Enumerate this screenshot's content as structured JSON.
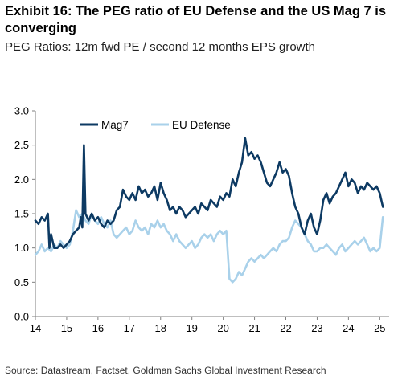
{
  "header": {
    "title": "Exhibit 16: The PEG ratio of EU Defense and the US Mag 7 is converging",
    "subtitle": "PEG Ratios: 12m fwd PE / second 12 months EPS growth"
  },
  "footer": {
    "source": "Source: Datastream, Factset, Goldman Sachs Global Investment Research"
  },
  "colors": {
    "mag7": "#0d3a63",
    "eu_defense": "#a9d1ea",
    "axis": "#7f7f7f"
  },
  "chart_data": {
    "type": "line",
    "title": "",
    "xlabel": "",
    "ylabel": "",
    "xlim": [
      2014,
      2025.3
    ],
    "ylim": [
      0.0,
      3.0
    ],
    "x_ticks": [
      "14",
      "15",
      "16",
      "17",
      "18",
      "19",
      "20",
      "21",
      "22",
      "23",
      "24",
      "25"
    ],
    "y_ticks": [
      "0.0",
      "0.5",
      "1.0",
      "1.5",
      "2.0",
      "2.5",
      "3.0"
    ],
    "grid": false,
    "legend": "top-center",
    "series": [
      {
        "name": "Mag7",
        "color": "#0d3a63",
        "x": [
          2014.0,
          2014.1,
          2014.2,
          2014.3,
          2014.4,
          2014.45,
          2014.5,
          2014.6,
          2014.7,
          2014.8,
          2014.9,
          2015.0,
          2015.1,
          2015.2,
          2015.3,
          2015.4,
          2015.45,
          2015.5,
          2015.55,
          2015.6,
          2015.7,
          2015.8,
          2015.9,
          2016.0,
          2016.1,
          2016.2,
          2016.3,
          2016.4,
          2016.5,
          2016.6,
          2016.7,
          2016.8,
          2016.9,
          2017.0,
          2017.1,
          2017.2,
          2017.3,
          2017.4,
          2017.5,
          2017.6,
          2017.7,
          2017.8,
          2017.9,
          2018.0,
          2018.1,
          2018.2,
          2018.3,
          2018.4,
          2018.5,
          2018.6,
          2018.7,
          2018.8,
          2018.9,
          2019.0,
          2019.1,
          2019.2,
          2019.3,
          2019.4,
          2019.5,
          2019.6,
          2019.7,
          2019.8,
          2019.9,
          2020.0,
          2020.1,
          2020.2,
          2020.3,
          2020.4,
          2020.5,
          2020.6,
          2020.7,
          2020.8,
          2020.9,
          2021.0,
          2021.1,
          2021.2,
          2021.3,
          2021.4,
          2021.5,
          2021.6,
          2021.7,
          2021.8,
          2021.9,
          2022.0,
          2022.1,
          2022.2,
          2022.3,
          2022.4,
          2022.5,
          2022.6,
          2022.7,
          2022.8,
          2022.9,
          2023.0,
          2023.1,
          2023.2,
          2023.3,
          2023.4,
          2023.5,
          2023.6,
          2023.7,
          2023.8,
          2023.9,
          2024.0,
          2024.1,
          2024.2,
          2024.3,
          2024.4,
          2024.5,
          2024.6,
          2024.7,
          2024.8,
          2024.9,
          2025.0,
          2025.1
        ],
        "values": [
          1.4,
          1.35,
          1.45,
          1.4,
          1.5,
          1.0,
          1.2,
          1.0,
          1.0,
          1.05,
          1.0,
          1.05,
          1.1,
          1.2,
          1.25,
          1.3,
          1.45,
          1.3,
          2.5,
          1.5,
          1.4,
          1.5,
          1.4,
          1.45,
          1.35,
          1.3,
          1.4,
          1.35,
          1.4,
          1.55,
          1.6,
          1.85,
          1.75,
          1.7,
          1.8,
          1.7,
          1.9,
          1.8,
          1.85,
          1.75,
          1.8,
          1.9,
          1.7,
          1.95,
          1.8,
          1.7,
          1.55,
          1.6,
          1.5,
          1.6,
          1.55,
          1.45,
          1.5,
          1.55,
          1.6,
          1.5,
          1.65,
          1.6,
          1.55,
          1.7,
          1.65,
          1.6,
          1.75,
          1.7,
          1.8,
          1.75,
          2.0,
          1.9,
          2.1,
          2.25,
          2.6,
          2.35,
          2.4,
          2.3,
          2.35,
          2.25,
          2.1,
          1.95,
          1.9,
          2.0,
          2.1,
          2.25,
          2.1,
          2.15,
          2.05,
          1.8,
          1.6,
          1.5,
          1.3,
          1.2,
          1.4,
          1.5,
          1.3,
          1.2,
          1.4,
          1.7,
          1.8,
          1.65,
          1.75,
          1.8,
          1.9,
          2.0,
          2.1,
          1.9,
          2.0,
          1.95,
          1.8,
          1.9,
          1.85,
          1.95,
          1.9,
          1.85,
          1.9,
          1.8,
          1.6
        ]
      },
      {
        "name": "EU Defense",
        "color": "#a9d1ea",
        "x": [
          2014.0,
          2014.1,
          2014.2,
          2014.3,
          2014.4,
          2014.5,
          2014.6,
          2014.7,
          2014.8,
          2014.9,
          2015.0,
          2015.1,
          2015.2,
          2015.3,
          2015.4,
          2015.5,
          2015.6,
          2015.7,
          2015.8,
          2015.9,
          2016.0,
          2016.1,
          2016.2,
          2016.3,
          2016.4,
          2016.5,
          2016.6,
          2016.7,
          2016.8,
          2016.9,
          2017.0,
          2017.1,
          2017.2,
          2017.3,
          2017.4,
          2017.5,
          2017.6,
          2017.7,
          2017.8,
          2017.9,
          2018.0,
          2018.1,
          2018.2,
          2018.3,
          2018.4,
          2018.5,
          2018.6,
          2018.7,
          2018.8,
          2018.9,
          2019.0,
          2019.1,
          2019.2,
          2019.3,
          2019.4,
          2019.5,
          2019.6,
          2019.7,
          2019.8,
          2019.9,
          2020.0,
          2020.1,
          2020.2,
          2020.3,
          2020.4,
          2020.5,
          2020.6,
          2020.7,
          2020.8,
          2020.9,
          2021.0,
          2021.1,
          2021.2,
          2021.3,
          2021.4,
          2021.5,
          2021.6,
          2021.7,
          2021.8,
          2021.9,
          2022.0,
          2022.1,
          2022.2,
          2022.3,
          2022.4,
          2022.5,
          2022.6,
          2022.7,
          2022.8,
          2022.9,
          2023.0,
          2023.1,
          2023.2,
          2023.3,
          2023.4,
          2023.5,
          2023.6,
          2023.7,
          2023.8,
          2023.9,
          2024.0,
          2024.1,
          2024.2,
          2024.3,
          2024.4,
          2024.5,
          2024.6,
          2024.7,
          2024.8,
          2024.9,
          2025.0,
          2025.1
        ],
        "values": [
          0.9,
          0.95,
          1.05,
          0.95,
          1.0,
          0.95,
          1.05,
          1.0,
          1.1,
          1.05,
          1.0,
          1.05,
          1.25,
          1.55,
          1.45,
          1.5,
          1.4,
          1.35,
          1.5,
          1.4,
          1.35,
          1.45,
          1.35,
          1.3,
          1.4,
          1.2,
          1.15,
          1.2,
          1.25,
          1.3,
          1.2,
          1.25,
          1.4,
          1.3,
          1.25,
          1.3,
          1.2,
          1.35,
          1.3,
          1.4,
          1.3,
          1.35,
          1.25,
          1.2,
          1.1,
          1.2,
          1.1,
          1.05,
          1.0,
          1.05,
          1.1,
          1.0,
          1.05,
          1.15,
          1.2,
          1.15,
          1.2,
          1.1,
          1.2,
          1.25,
          1.2,
          1.25,
          0.55,
          0.5,
          0.55,
          0.65,
          0.6,
          0.7,
          0.8,
          0.85,
          0.8,
          0.85,
          0.9,
          0.85,
          0.9,
          0.95,
          1.0,
          0.95,
          1.05,
          1.1,
          1.1,
          1.15,
          1.3,
          1.4,
          1.35,
          1.3,
          1.2,
          1.1,
          1.05,
          0.95,
          0.95,
          1.0,
          1.0,
          1.05,
          1.0,
          0.95,
          0.9,
          1.0,
          1.05,
          0.95,
          1.0,
          1.05,
          1.1,
          1.05,
          1.1,
          1.15,
          1.05,
          0.95,
          1.0,
          0.95,
          1.0,
          1.45
        ]
      }
    ]
  }
}
